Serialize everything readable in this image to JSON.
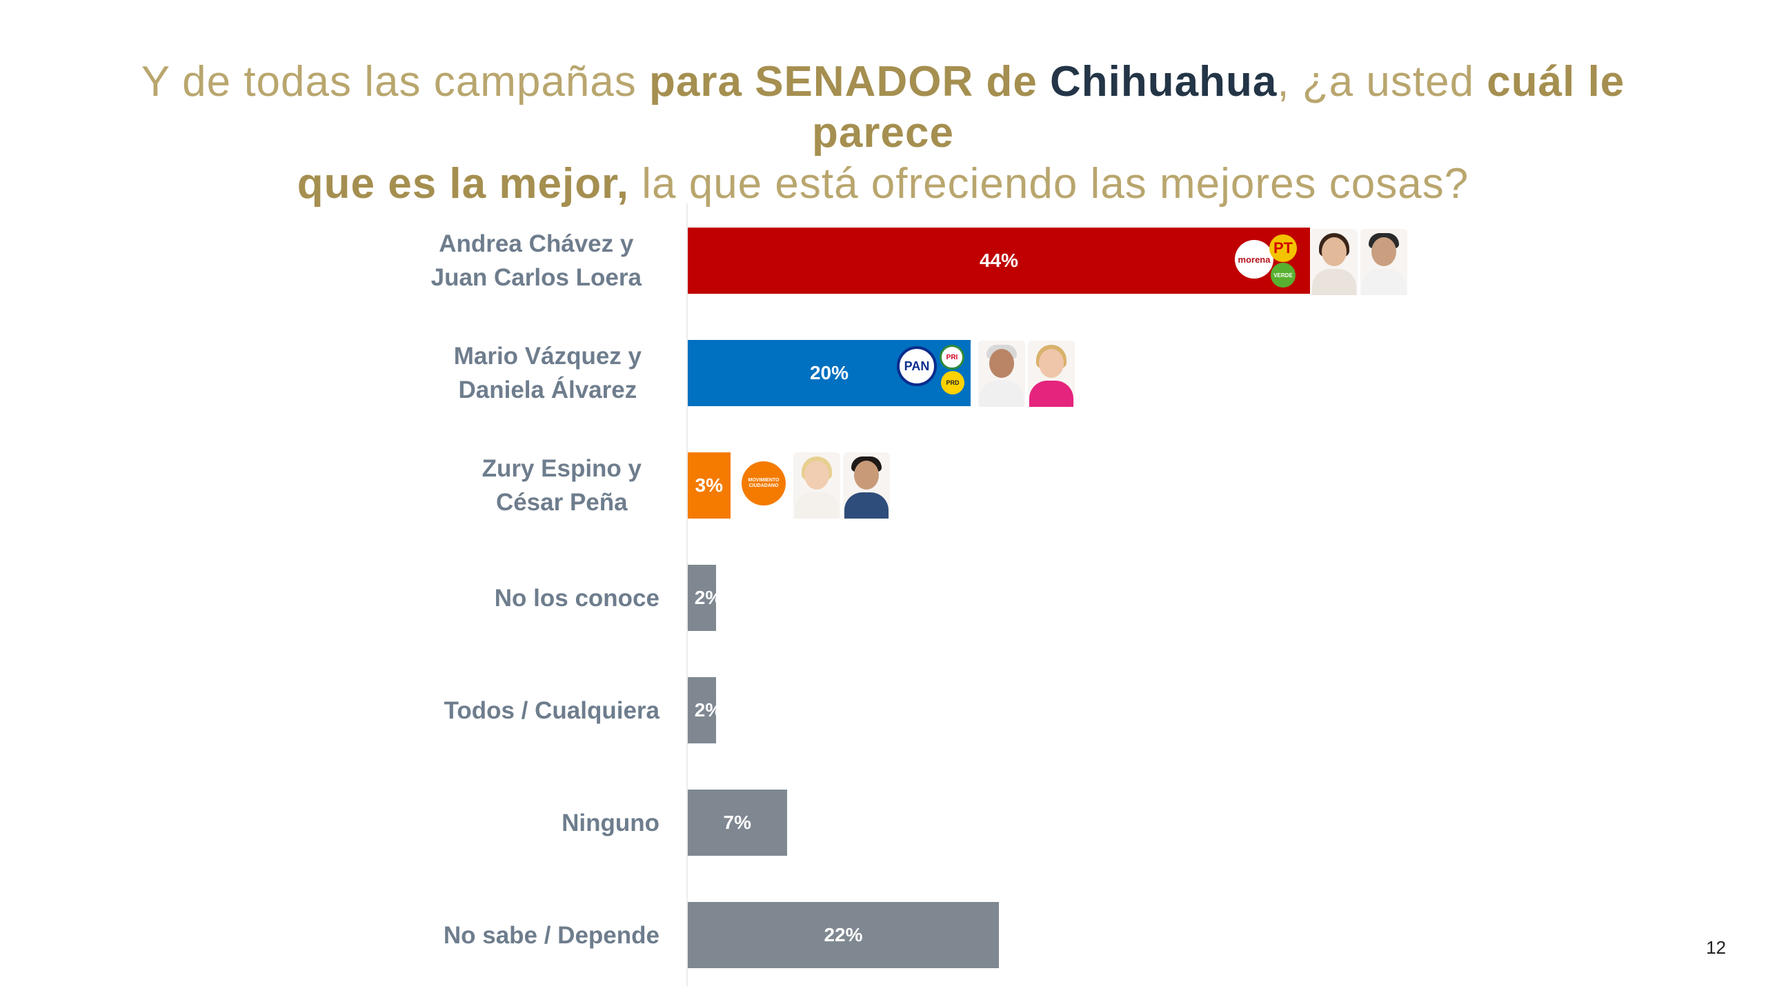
{
  "title": {
    "part1": "Y de todas las campañas ",
    "part2": "para SENADOR de ",
    "part3": "Chihuahua",
    "part4": ", ¿a usted ",
    "part5": "cuál le parece",
    "part6": "que es la mejor,",
    "part7": " la que está ofreciendo las mejores cosas?"
  },
  "page_number": "12",
  "colors": {
    "morena": "#c00000",
    "pan": "#0070c0",
    "mc": "#f47b00",
    "neutral": "#7f8891",
    "title_gold": "#b9a66e",
    "label_gray": "#6e7d8d"
  },
  "logos": {
    "morena_text": "morena",
    "pt_text": "PT",
    "verde_text": "VERDE",
    "pan_text": "PAN",
    "pri_text": "PRI",
    "prd_text": "PRD",
    "mc_text": "MOVIMIENTO CIUDADANO"
  },
  "chart_data": {
    "type": "bar",
    "orientation": "horizontal",
    "title": "",
    "xlabel": "",
    "ylabel": "",
    "xlim": [
      0,
      100
    ],
    "grid": false,
    "legend": "none",
    "categories": [
      [
        "Andrea Chávez y",
        "Juan Carlos Loera"
      ],
      [
        "Mario Vázquez y",
        "Daniela Álvarez"
      ],
      [
        "Zury Espino y",
        "César Peña"
      ],
      [
        "No los conoce"
      ],
      [
        "Todos / Cualquiera"
      ],
      [
        "Ninguno"
      ],
      [
        "No sabe / Depende"
      ]
    ],
    "values": [
      44,
      20,
      3,
      2,
      2,
      7,
      22
    ],
    "value_labels": [
      "44%",
      "20%",
      "3%",
      "2%",
      "2%",
      "7%",
      "22%"
    ],
    "bar_colors": [
      "#c00000",
      "#0070c0",
      "#f47b00",
      "#7f8891",
      "#7f8891",
      "#7f8891",
      "#7f8891"
    ]
  }
}
